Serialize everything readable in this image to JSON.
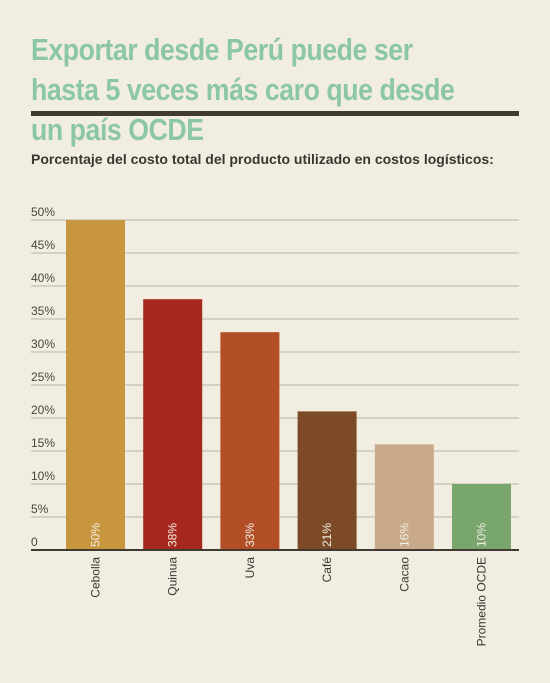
{
  "title": "Exportar desde Perú puede ser hasta 5 veces más caro que desde un país OCDE",
  "subtitle": "Porcentaje del costo total del producto utilizado en costos logísticos:",
  "colors": {
    "background": "#f2ede1",
    "title": "#8cc7a3",
    "rule": "#403a33",
    "gridline": "#b9b2a5",
    "baseline": "#403a33"
  },
  "chart_data": {
    "type": "bar",
    "title": "Exportar desde Perú puede ser hasta 5 veces más caro que desde un país OCDE",
    "subtitle": "Porcentaje del costo total del producto utilizado en costos logísticos:",
    "xlabel": "",
    "ylabel": "",
    "ylim": [
      0,
      50
    ],
    "yticks": [
      0,
      5,
      10,
      15,
      20,
      25,
      30,
      35,
      40,
      45,
      50
    ],
    "ytick_labels": [
      "0",
      "5%",
      "10%",
      "15%",
      "20%",
      "25%",
      "30%",
      "35%",
      "40%",
      "45%",
      "50%"
    ],
    "grid": true,
    "categories": [
      "Cebolla",
      "Quinua",
      "Uva",
      "Café",
      "Cacao",
      "Promedio OCDE"
    ],
    "values": [
      50,
      38,
      33,
      21,
      16,
      10
    ],
    "value_labels": [
      "50%",
      "38%",
      "33%",
      "21%",
      "16%",
      "10%"
    ],
    "bar_colors": [
      "#c8963e",
      "#a6271d",
      "#b24f26",
      "#7d4a27",
      "#c8a98a",
      "#79a66d"
    ]
  }
}
